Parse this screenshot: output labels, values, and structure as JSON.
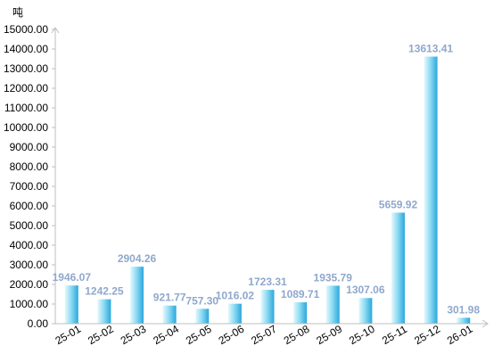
{
  "chart_data": {
    "type": "bar",
    "ylabel": "吨",
    "categories": [
      "25-01",
      "25-02",
      "25-03",
      "25-04",
      "25-05",
      "25-06",
      "25-07",
      "25-08",
      "25-09",
      "25-10",
      "25-11",
      "25-12",
      "26-01"
    ],
    "values": [
      1946.07,
      1242.25,
      2904.26,
      921.77,
      757.3,
      1016.02,
      1723.31,
      1089.71,
      1935.79,
      1307.06,
      5659.92,
      13613.41,
      301.98
    ],
    "value_labels": [
      "1946.07",
      "1242.25",
      "2904.26",
      "921.77",
      "757.30",
      "1016.02",
      "1723.31",
      "1089.71",
      "1935.79",
      "1307.06",
      "5659.92",
      "13613.41",
      "301.98"
    ],
    "ylim": [
      0,
      15000
    ],
    "yticks": [
      "0.00",
      "1000.00",
      "2000.00",
      "3000.00",
      "4000.00",
      "5000.00",
      "6000.00",
      "7000.00",
      "8000.00",
      "9000.00",
      "10000.00",
      "11000.00",
      "12000.00",
      "13000.00",
      "14000.00",
      "15000.00"
    ],
    "grid": false,
    "legend": "none",
    "colors": {
      "bar_light": "#e6f8fd",
      "bar_mid": "#8fdcf3",
      "bar_dark": "#2aa7dc",
      "axis": "#bfbfbf",
      "data_label": "#8fa8cc"
    }
  }
}
